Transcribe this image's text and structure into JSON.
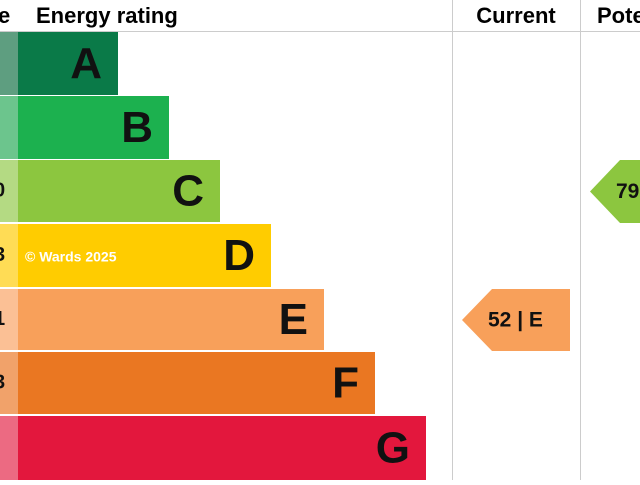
{
  "header": {
    "score": "e",
    "rating": "Energy rating",
    "current": "Current",
    "potential": "Pote"
  },
  "bands": [
    {
      "letter": "A",
      "color": "#0a7a48",
      "strip": "#5e9e80"
    },
    {
      "letter": "B",
      "color": "#1cb14f",
      "strip": "#6cc58d"
    },
    {
      "letter": "C",
      "color": "#8cc63f",
      "strip": "#b4da83",
      "score": "0"
    },
    {
      "letter": "D",
      "color": "#ffcc00",
      "strip": "#ffdc55",
      "score": "3"
    },
    {
      "letter": "E",
      "color": "#f8a05a",
      "strip": "#fbc095",
      "score": "1"
    },
    {
      "letter": "F",
      "color": "#ea7722",
      "strip": "#f1a26a",
      "score": "3"
    },
    {
      "letter": "G",
      "color": "#e3173d",
      "strip": "#ec6a82"
    }
  ],
  "copyright": "© Wards 2025",
  "current": {
    "label": "52 | E",
    "band": 4
  },
  "potential": {
    "label": "79",
    "band": 2
  }
}
